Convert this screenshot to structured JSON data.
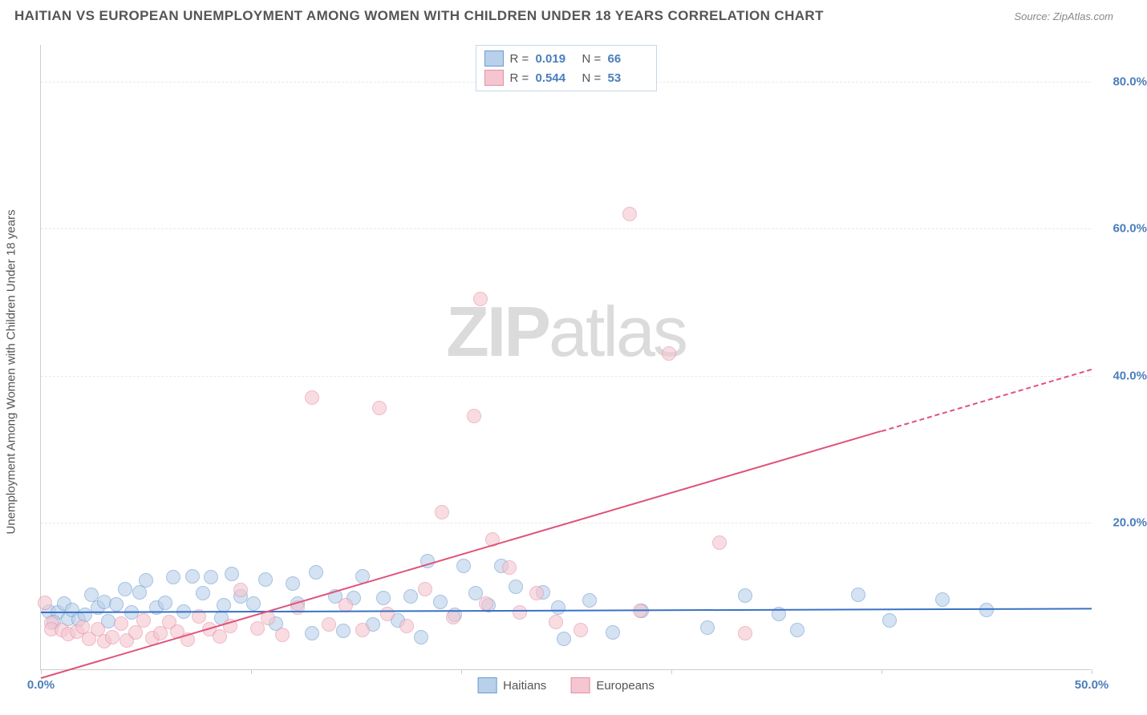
{
  "title": "HAITIAN VS EUROPEAN UNEMPLOYMENT AMONG WOMEN WITH CHILDREN UNDER 18 YEARS CORRELATION CHART",
  "source": "Source: ZipAtlas.com",
  "ylabel": "Unemployment Among Women with Children Under 18 years",
  "watermark_a": "ZIP",
  "watermark_b": "atlas",
  "chart": {
    "type": "scatter",
    "xlim": [
      0,
      50
    ],
    "ylim": [
      0,
      85
    ],
    "x_ticks": [
      0,
      10,
      20,
      30,
      40,
      50
    ],
    "x_tick_labels": [
      "0.0%",
      "",
      "",
      "",
      "",
      "50.0%"
    ],
    "y_ticks": [
      20,
      40,
      60,
      80
    ],
    "y_tick_labels": [
      "20.0%",
      "40.0%",
      "60.0%",
      "80.0%"
    ],
    "grid_color": "#e8e8e8",
    "axis_color": "#cccccc",
    "label_color": "#4a7ebb",
    "background_color": "#ffffff",
    "marker_radius": 9,
    "series": [
      {
        "name": "Haitians",
        "fill": "#b8d0ea",
        "stroke": "#6b9bd1",
        "fill_opacity": 0.6,
        "r_value": "0.019",
        "n_value": "66",
        "trend": {
          "x0": 0,
          "y0": 8.0,
          "x1": 50,
          "y1": 8.5,
          "color": "#3a72c4",
          "width": 2
        },
        "points": [
          [
            0.4,
            8
          ],
          [
            0.8,
            7.9
          ],
          [
            1.1,
            9
          ],
          [
            1.3,
            7
          ],
          [
            0.6,
            6.5
          ],
          [
            1.5,
            8.2
          ],
          [
            1.8,
            6.9
          ],
          [
            2.1,
            7.5
          ],
          [
            2.4,
            10.2
          ],
          [
            2.7,
            8.5
          ],
          [
            3.0,
            9.3
          ],
          [
            3.2,
            6.6
          ],
          [
            3.6,
            8.9
          ],
          [
            4.0,
            11
          ],
          [
            4.3,
            7.8
          ],
          [
            4.7,
            10.6
          ],
          [
            5.0,
            12.2
          ],
          [
            5.5,
            8.5
          ],
          [
            5.9,
            9.1
          ],
          [
            6.3,
            12.6
          ],
          [
            6.8,
            8
          ],
          [
            7.2,
            12.8
          ],
          [
            7.7,
            10.5
          ],
          [
            8.1,
            12.6
          ],
          [
            8.6,
            7.1
          ],
          [
            8.7,
            8.8
          ],
          [
            9.1,
            13.1
          ],
          [
            9.5,
            10
          ],
          [
            10.1,
            9
          ],
          [
            10.7,
            12.3
          ],
          [
            11.2,
            6.3
          ],
          [
            12.0,
            11.8
          ],
          [
            12.2,
            9
          ],
          [
            12.9,
            5
          ],
          [
            13.1,
            13.3
          ],
          [
            14.0,
            10
          ],
          [
            14.4,
            5.3
          ],
          [
            14.9,
            9.8
          ],
          [
            15.3,
            12.8
          ],
          [
            15.8,
            6.2
          ],
          [
            16.3,
            9.8
          ],
          [
            17.0,
            6.8
          ],
          [
            17.6,
            10
          ],
          [
            18.1,
            4.5
          ],
          [
            18.4,
            14.8
          ],
          [
            19.0,
            9.3
          ],
          [
            19.7,
            7.5
          ],
          [
            20.1,
            14.2
          ],
          [
            20.7,
            10.5
          ],
          [
            21.3,
            8.8
          ],
          [
            21.9,
            14.2
          ],
          [
            22.6,
            11.3
          ],
          [
            23.9,
            10.6
          ],
          [
            24.6,
            8.5
          ],
          [
            24.9,
            4.2
          ],
          [
            26.1,
            9.5
          ],
          [
            27.2,
            5.1
          ],
          [
            28.6,
            8.1
          ],
          [
            31.7,
            5.8
          ],
          [
            33.5,
            10.1
          ],
          [
            35.1,
            7.6
          ],
          [
            36.0,
            5.4
          ],
          [
            38.9,
            10.2
          ],
          [
            40.4,
            6.8
          ],
          [
            42.9,
            9.6
          ],
          [
            45.0,
            8.2
          ]
        ]
      },
      {
        "name": "Europeans",
        "fill": "#f4c6d0",
        "stroke": "#e58fa3",
        "fill_opacity": 0.6,
        "r_value": "0.544",
        "n_value": "53",
        "trend": {
          "x0": 0,
          "y0": -1,
          "x1": 50,
          "y1": 41,
          "color": "#e0537a",
          "width": 2,
          "dash_after_x": 40
        },
        "points": [
          [
            0.2,
            9.2
          ],
          [
            0.5,
            6.4
          ],
          [
            0.5,
            5.6
          ],
          [
            1.0,
            5.5
          ],
          [
            1.3,
            4.9
          ],
          [
            1.7,
            5.2
          ],
          [
            2.0,
            5.9
          ],
          [
            2.3,
            4.3
          ],
          [
            2.7,
            5.6
          ],
          [
            3.0,
            3.9
          ],
          [
            3.4,
            4.5
          ],
          [
            3.8,
            6.3
          ],
          [
            4.1,
            4.0
          ],
          [
            4.5,
            5.1
          ],
          [
            4.9,
            6.8
          ],
          [
            5.3,
            4.4
          ],
          [
            5.7,
            5.0
          ],
          [
            6.1,
            6.5
          ],
          [
            6.5,
            5.2
          ],
          [
            7.0,
            4.1
          ],
          [
            7.5,
            7.3
          ],
          [
            8.0,
            5.6
          ],
          [
            8.5,
            4.6
          ],
          [
            9.0,
            6.0
          ],
          [
            9.5,
            10.9
          ],
          [
            10.3,
            5.7
          ],
          [
            10.8,
            7.1
          ],
          [
            11.5,
            4.8
          ],
          [
            12.2,
            8.5
          ],
          [
            12.9,
            37.0
          ],
          [
            13.7,
            6.2
          ],
          [
            14.5,
            8.8
          ],
          [
            15.3,
            5.4
          ],
          [
            16.1,
            35.6
          ],
          [
            16.5,
            7.6
          ],
          [
            17.4,
            6.0
          ],
          [
            18.3,
            11.0
          ],
          [
            19.1,
            21.5
          ],
          [
            19.6,
            7.2
          ],
          [
            20.6,
            34.5
          ],
          [
            20.9,
            50.5
          ],
          [
            21.2,
            9.0
          ],
          [
            21.5,
            17.8
          ],
          [
            22.3,
            14.0
          ],
          [
            22.8,
            7.8
          ],
          [
            23.6,
            10.5
          ],
          [
            24.5,
            6.5
          ],
          [
            25.7,
            5.5
          ],
          [
            28.0,
            62.0
          ],
          [
            28.5,
            8.1
          ],
          [
            29.9,
            43.0
          ],
          [
            32.3,
            17.3
          ],
          [
            33.5,
            5.0
          ]
        ]
      }
    ]
  },
  "bottom_legend": [
    {
      "label": "Haitians",
      "fill": "#b8d0ea",
      "stroke": "#6b9bd1"
    },
    {
      "label": "Europeans",
      "fill": "#f4c6d0",
      "stroke": "#e58fa3"
    }
  ]
}
